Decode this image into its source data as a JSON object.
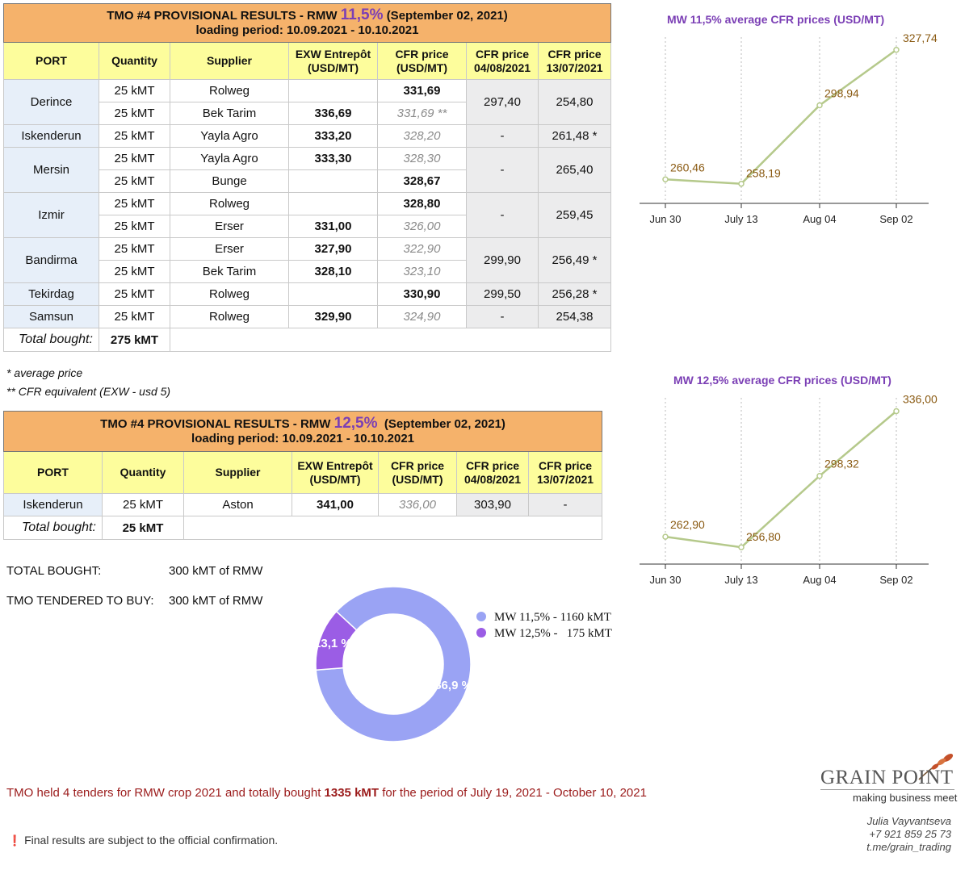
{
  "table1": {
    "title_prefix": "TMO #4 PROVISIONAL RESULTS - RMW",
    "title_pct": "11,5%",
    "title_date": "(September 02, 2021)",
    "loading": "loading period: 10.09.2021 - 10.10.2021",
    "headers": [
      "PORT",
      "Quantity",
      "Supplier",
      "EXW Entrepôt (USD/MT)",
      "CFR price (USD/MT)",
      "CFR price 04/08/2021",
      "CFR price 13/07/2021"
    ],
    "rows": [
      {
        "port": "Derince",
        "qty": "25 kMT",
        "supplier": "Rolweg",
        "exw": "",
        "cfr": "331,69",
        "cfr_it": false,
        "p0408": "297,40",
        "p1307": "254,80"
      },
      {
        "port": "",
        "qty": "25 kMT",
        "supplier": "Bek Tarim",
        "exw": "336,69",
        "cfr": "331,69 **",
        "cfr_it": true
      },
      {
        "port": "Iskenderun",
        "qty": "25 kMT",
        "supplier": "Yayla Agro",
        "exw": "333,20",
        "cfr": "328,20",
        "cfr_it": true,
        "p0408": "-",
        "p1307": "261,48 *"
      },
      {
        "port": "Mersin",
        "qty": "25 kMT",
        "supplier": "Yayla Agro",
        "exw": "333,30",
        "cfr": "328,30",
        "cfr_it": true,
        "p0408": "-",
        "p1307": "265,40"
      },
      {
        "port": "",
        "qty": "25 kMT",
        "supplier": "Bunge",
        "exw": "",
        "cfr": "328,67",
        "cfr_it": false
      },
      {
        "port": "Izmir",
        "qty": "25 kMT",
        "supplier": "Rolweg",
        "exw": "",
        "cfr": "328,80",
        "cfr_it": false,
        "p0408": "-",
        "p1307": "259,45"
      },
      {
        "port": "",
        "qty": "25 kMT",
        "supplier": "Erser",
        "exw": "331,00",
        "cfr": "326,00",
        "cfr_it": true
      },
      {
        "port": "Bandirma",
        "qty": "25 kMT",
        "supplier": "Erser",
        "exw": "327,90",
        "cfr": "322,90",
        "cfr_it": true,
        "p0408": "299,90",
        "p1307": "256,49 *"
      },
      {
        "port": "",
        "qty": "25 kMT",
        "supplier": "Bek Tarim",
        "exw": "328,10",
        "cfr": "323,10",
        "cfr_it": true
      },
      {
        "port": "Tekirdag",
        "qty": "25 kMT",
        "supplier": "Rolweg",
        "exw": "",
        "cfr": "330,90",
        "cfr_it": false,
        "p0408": "299,50",
        "p1307": "256,28 *"
      },
      {
        "port": "Samsun",
        "qty": "25 kMT",
        "supplier": "Rolweg",
        "exw": "329,90",
        "cfr": "324,90",
        "cfr_it": true,
        "p0408": "-",
        "p1307": "254,38"
      }
    ],
    "total_label": "Total bought:",
    "total_value": "275 kMT"
  },
  "notes": {
    "avg": "* average price",
    "cfr_eq": "** CFR equivalent (EXW - usd 5)"
  },
  "table2": {
    "title_prefix": "TMO #4 PROVISIONAL RESULTS - RMW",
    "title_pct": "12,5%",
    "title_date": "(September 02, 2021)",
    "loading": "loading period: 10.09.2021 - 10.10.2021",
    "headers": [
      "PORT",
      "Quantity",
      "Supplier",
      "EXW Entrepôt (USD/MT)",
      "CFR price (USD/MT)",
      "CFR price 04/08/2021",
      "CFR price 13/07/2021"
    ],
    "row": {
      "port": "Iskenderun",
      "qty": "25 kMT",
      "supplier": "Aston",
      "exw": "341,00",
      "cfr": "336,00",
      "p0408": "303,90",
      "p1307": "-"
    },
    "total_label": "Total bought:",
    "total_value": "25 kMT"
  },
  "summary": {
    "bought_label": "TOTAL BOUGHT:",
    "bought_value": "300 kMT of RMW",
    "tendered_label": "TMO TENDERED TO BUY:",
    "tendered_value": "300 kMT of RMW"
  },
  "chart_data": [
    {
      "type": "line",
      "title": "MW 11,5% average CFR prices (USD/MT)",
      "x": [
        "Jun 30",
        "July 13",
        "Aug 04",
        "Sep 02"
      ],
      "series": [
        {
          "values": [
            260.46,
            258.19,
            298.94,
            327.74
          ],
          "labels": [
            "260,46",
            "258,19",
            "298,94",
            "327,74"
          ]
        }
      ],
      "color": "#b5c98b"
    },
    {
      "type": "line",
      "title": "MW 12,5% average CFR prices (USD/MT)",
      "x": [
        "Jun 30",
        "July 13",
        "Aug 04",
        "Sep 02"
      ],
      "series": [
        {
          "values": [
            262.9,
            256.8,
            298.32,
            336.0
          ],
          "labels": [
            "262,90",
            "256,80",
            "298,32",
            "336,00"
          ]
        }
      ],
      "color": "#b5c98b"
    },
    {
      "type": "pie",
      "slices": [
        {
          "name": "MW 11,5% - 1160 kMT",
          "value": 86.9,
          "label": "86,9 %",
          "color": "#9aa3f4"
        },
        {
          "name": "MW 12,5% -   175 kMT",
          "value": 13.1,
          "label": "13,1 %",
          "color": "#9b5de5"
        }
      ]
    }
  ],
  "footer": {
    "text_before": "TMO held 4 tenders for RMW crop 2021 and totally bought ",
    "bold": "1335 kMT",
    "text_after": " for the period of July 19, 2021 - October 10, 2021",
    "warn_icon": "❗",
    "warn_text": "Final results are subject to the official confirmation."
  },
  "brand": {
    "name": "GRAIN POINT",
    "tagline": "making business meet",
    "icon": "wheat-icon"
  },
  "contact": {
    "name": "Julia Vayvantseva",
    "phone": "+7 921 859 25 73",
    "link": "t.me/grain_trading"
  }
}
